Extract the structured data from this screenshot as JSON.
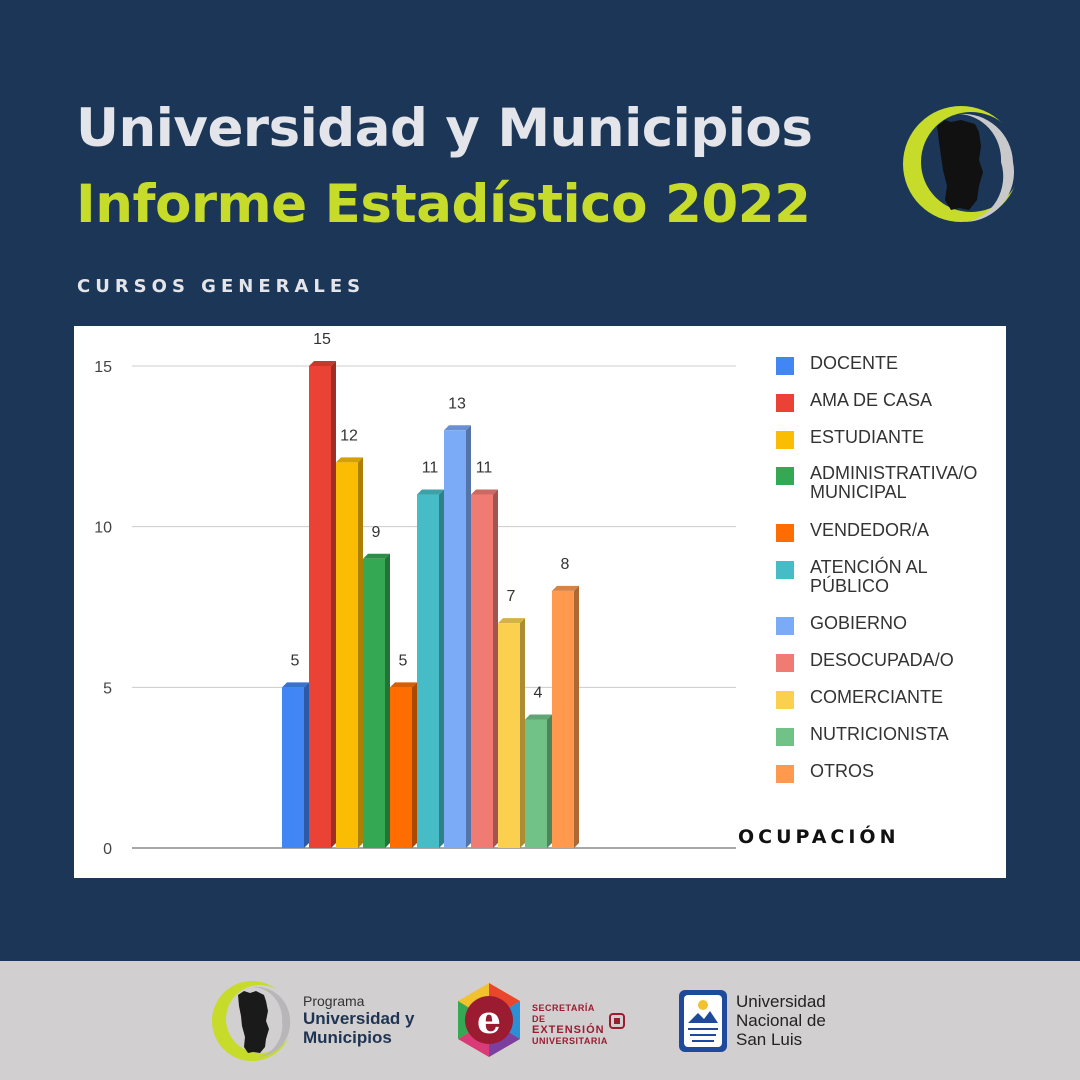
{
  "header": {
    "title_line1": "Universidad y Municipios",
    "title_line2": "Informe Estadístico 2022",
    "section_label": "CURSOS GENERALES"
  },
  "chart_data": {
    "type": "bar",
    "categories": [
      "DOCENTE",
      "AMA DE CASA",
      "ESTUDIANTE",
      "ADMINISTRATIVA/O MUNICIPAL",
      "VENDEDOR/A",
      "ATENCIÓN AL PÚBLICO",
      "GOBIERNO",
      "DESOCUPADA/O",
      "COMERCIANTE",
      "NUTRICIONISTA",
      "OTROS"
    ],
    "values": [
      5,
      15,
      12,
      9,
      5,
      11,
      13,
      11,
      7,
      4,
      8
    ],
    "colors": [
      "#4285f4",
      "#ea4335",
      "#fbbc04",
      "#34a853",
      "#ff6d01",
      "#46bdc6",
      "#7baaf7",
      "#f07b72",
      "#fcd04f",
      "#71c287",
      "#ff994d"
    ],
    "xlabel": "OCUPACIÓN",
    "ylabel": "",
    "ylim": [
      0,
      15
    ],
    "yticks": [
      0,
      5,
      10,
      15
    ],
    "grid": true,
    "legend": "right",
    "data_labels": true
  },
  "legend_items": [
    {
      "label": "DOCENTE",
      "color": "#4285f4"
    },
    {
      "label": "AMA DE CASA",
      "color": "#ea4335"
    },
    {
      "label": "ESTUDIANTE",
      "color": "#fbbc04"
    },
    {
      "label": "ADMINISTRATIVA/O MUNICIPAL",
      "color": "#34a853"
    },
    {
      "label": "VENDEDOR/A",
      "color": "#ff6d01"
    },
    {
      "label": "ATENCIÓN AL PÚBLICO",
      "color": "#46bdc6"
    },
    {
      "label": "GOBIERNO",
      "color": "#7baaf7"
    },
    {
      "label": "DESOCUPADA/O",
      "color": "#f07b72"
    },
    {
      "label": "COMERCIANTE",
      "color": "#fcd04f"
    },
    {
      "label": "NUTRICIONISTA",
      "color": "#71c287"
    },
    {
      "label": "OTROS",
      "color": "#ff994d"
    }
  ],
  "footer": {
    "program_label": "Programa",
    "program_name": "Universidad y Municipios",
    "secretaria_line1": "SECRETARÍA DE",
    "secretaria_line2": "EXTENSIÓN",
    "secretaria_line3": "UNIVERSITARIA",
    "university_name": "Universidad Nacional de San Luis"
  },
  "icons": {
    "top_logo": "province-crescent-logo",
    "footer_logo1": "province-crescent-logo",
    "footer_logo2": "extension-e-hexagon-logo",
    "footer_logo3": "unsl-shield-logo"
  }
}
